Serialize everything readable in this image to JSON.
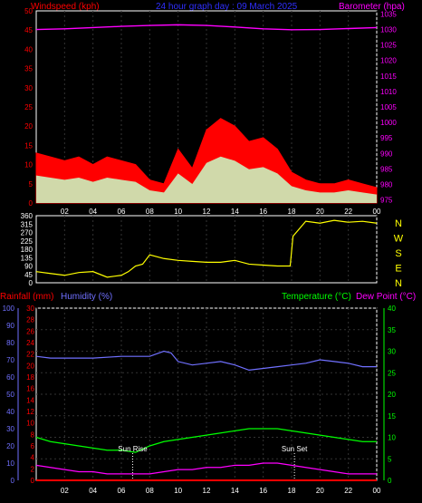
{
  "chart_data": [
    {
      "type": "line",
      "title": "24 hour graph day : 09 March 2025",
      "left_axis_label": "Windspeed (kph)",
      "right_axis_label": "Barometer (hpa)",
      "x_ticks": [
        "02",
        "04",
        "06",
        "08",
        "10",
        "12",
        "14",
        "16",
        "18",
        "20",
        "22",
        "00"
      ],
      "left_ticks": [
        "0",
        "5",
        "10",
        "15",
        "20",
        "25",
        "30",
        "35",
        "40",
        "45",
        "50"
      ],
      "right_ticks": [
        "975",
        "980",
        "985",
        "990",
        "995",
        "1000",
        "1005",
        "1010",
        "1015",
        "1020",
        "1025",
        "1030",
        "1035"
      ],
      "ylim_left": [
        0,
        50
      ],
      "ylim_right": [
        974,
        1036
      ],
      "series": [
        {
          "name": "Windspeed (kph)",
          "color": "#ff0000",
          "x": [
            0,
            1,
            2,
            3,
            4,
            5,
            6,
            7,
            8,
            9,
            10,
            11,
            12,
            13,
            14,
            15,
            16,
            17,
            18,
            19,
            20,
            21,
            22,
            23,
            24
          ],
          "values": [
            13,
            12,
            11,
            12,
            10,
            12,
            11,
            10,
            6,
            5,
            14,
            9,
            19,
            22,
            20,
            16,
            17,
            14,
            8,
            6,
            5,
            5,
            6,
            5,
            4
          ]
        },
        {
          "name": "Barometer (hpa)",
          "color": "#ff00ff",
          "x": [
            0,
            2,
            4,
            6,
            8,
            10,
            12,
            14,
            16,
            18,
            20,
            22,
            24
          ],
          "values": [
            1030.0,
            1030.2,
            1030.6,
            1031.0,
            1031.3,
            1031.5,
            1031.3,
            1030.8,
            1030.2,
            1029.9,
            1030.0,
            1030.3,
            1030.6
          ]
        }
      ]
    },
    {
      "type": "line",
      "title": "",
      "right_axis_letters": [
        "N",
        "W",
        "S",
        "E",
        "N"
      ],
      "x_ticks": [
        "02",
        "04",
        "06",
        "08",
        "10",
        "12",
        "14",
        "16",
        "18",
        "20",
        "22",
        "00"
      ],
      "left_ticks": [
        "0",
        "45",
        "90",
        "135",
        "180",
        "225",
        "270",
        "315",
        "360"
      ],
      "ylim": [
        0,
        360
      ],
      "series": [
        {
          "name": "Wind direction",
          "color": "#ffff00",
          "x": [
            0,
            1,
            2,
            3,
            4,
            5,
            6,
            6.5,
            7,
            7.5,
            8,
            9,
            10,
            11,
            12,
            13,
            14,
            15,
            16,
            17,
            17.9,
            18.1,
            19,
            20,
            21,
            22,
            23,
            24
          ],
          "values": [
            60,
            50,
            40,
            55,
            60,
            30,
            40,
            60,
            90,
            100,
            150,
            130,
            120,
            115,
            110,
            110,
            120,
            100,
            95,
            90,
            90,
            250,
            330,
            320,
            335,
            325,
            330,
            320
          ]
        }
      ]
    },
    {
      "type": "line",
      "title": "",
      "left_axis_label": "Rainfall (mm)",
      "left_axis_label2": "Humidity (%)",
      "right_axis_label": "Temperature (°C)",
      "right_axis_label2": "Dew Point (°C)",
      "x_ticks": [
        "02",
        "04",
        "06",
        "08",
        "10",
        "12",
        "14",
        "16",
        "18",
        "20",
        "22",
        "00"
      ],
      "rain_ticks": [
        "0",
        "2",
        "4",
        "6",
        "8",
        "10",
        "12",
        "14",
        "16",
        "18",
        "20",
        "22",
        "24",
        "26",
        "28",
        "30"
      ],
      "humidity_ticks": [
        "0",
        "10",
        "20",
        "30",
        "40",
        "50",
        "60",
        "70",
        "80",
        "90",
        "100"
      ],
      "temp_ticks": [
        "0",
        "5",
        "10",
        "15",
        "20",
        "25",
        "30",
        "35",
        "40"
      ],
      "annotations": [
        "Sun Rise",
        "Sun Set"
      ],
      "series": [
        {
          "name": "Humidity (%)",
          "color": "#7070ff",
          "x": [
            0,
            1,
            2,
            4,
            6,
            7,
            8,
            9,
            9.5,
            10,
            11,
            12,
            13,
            14,
            15,
            16,
            17,
            18,
            19,
            20,
            21,
            22,
            23,
            24
          ],
          "values": [
            72,
            71,
            71,
            71,
            72,
            72,
            72,
            75,
            74,
            69,
            67,
            68,
            69,
            67,
            64,
            65,
            66,
            67,
            68,
            70,
            69,
            68,
            66,
            66
          ]
        },
        {
          "name": "Temperature (°C)",
          "color": "#00ff00",
          "x": [
            0,
            1,
            2,
            3,
            4,
            5,
            6,
            7,
            8,
            9,
            10,
            11,
            12,
            13,
            14,
            15,
            16,
            17,
            18,
            19,
            20,
            21,
            22,
            23,
            24
          ],
          "values": [
            10,
            9,
            8.5,
            8,
            7.5,
            7,
            7,
            6.5,
            8,
            9,
            9.5,
            10,
            10.5,
            11,
            11.5,
            12,
            12,
            12,
            11.5,
            11,
            10.5,
            10,
            9.5,
            9,
            9
          ]
        },
        {
          "name": "Dew Point (°C)",
          "color": "#ff00ff",
          "x": [
            0,
            1,
            2,
            3,
            4,
            5,
            6,
            7,
            8,
            9,
            10,
            11,
            12,
            13,
            14,
            15,
            16,
            17,
            18,
            19,
            20,
            21,
            22,
            23,
            24
          ],
          "values": [
            3.5,
            3,
            2.5,
            2,
            2,
            1.5,
            1.5,
            1.5,
            1.5,
            2,
            2.5,
            2.5,
            3,
            3,
            3.5,
            3.5,
            4,
            4,
            3.5,
            3,
            2.5,
            2,
            1.5,
            1.5,
            1.5
          ]
        },
        {
          "name": "Rainfall (mm)",
          "color": "#ff0000",
          "x": [
            0,
            24
          ],
          "values": [
            0,
            0
          ]
        }
      ]
    }
  ]
}
